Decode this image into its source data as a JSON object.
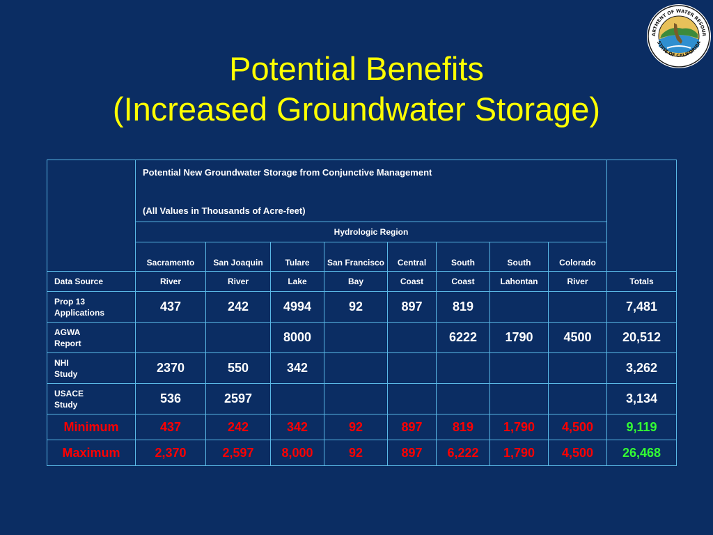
{
  "slide": {
    "title_line1": "Potential Benefits",
    "title_line2": "(Increased Groundwater Storage)"
  },
  "seal": {
    "text_top": "DEPARTMENT OF WATER RESOURCES",
    "text_bottom": "STATE OF CALIFORNIA"
  },
  "table": {
    "heading": "Potential New Groundwater Storage from Conjunctive Management",
    "units": "(All Values in Thousands of Acre-feet)",
    "region_header": "Hydrologic Region",
    "regions_top": [
      "Sacramento",
      "San Joaquin",
      "Tulare",
      "San Francisco",
      "Central",
      "South",
      "South",
      "Colorado"
    ],
    "source_label": "Data Source",
    "regions_bottom": [
      "River",
      "River",
      "Lake",
      "Bay",
      "Coast",
      "Coast",
      "Lahontan",
      "River"
    ],
    "totals_label": "Totals",
    "rows": [
      {
        "label_line1": "Prop 13",
        "label_line2": "Applications",
        "values": [
          "437",
          "242",
          "4994",
          "92",
          "897",
          "819",
          "",
          ""
        ],
        "total": "7,481"
      },
      {
        "label_line1": "AGWA",
        "label_line2": "Report",
        "values": [
          "",
          "",
          "8000",
          "",
          "",
          "6222",
          "1790",
          "4500"
        ],
        "total": "20,512"
      },
      {
        "label_line1": "NHI",
        "label_line2": "Study",
        "values": [
          "2370",
          "550",
          "342",
          "",
          "",
          "",
          "",
          ""
        ],
        "total": "3,262"
      },
      {
        "label_line1": "USACE",
        "label_line2": "Study",
        "values": [
          "536",
          "2597",
          "",
          "",
          "",
          "",
          "",
          ""
        ],
        "total": "3,134"
      }
    ],
    "minimum": {
      "label": "Minimum",
      "values": [
        "437",
        "242",
        "342",
        "92",
        "897",
        "819",
        "1,790",
        "4,500"
      ],
      "total": "9,119"
    },
    "maximum": {
      "label": "Maximum",
      "values": [
        "2,370",
        "2,597",
        "8,000",
        "92",
        "897",
        "6,222",
        "1,790",
        "4,500"
      ],
      "total": "26,468"
    }
  },
  "colors": {
    "background": "#0b2d63",
    "title": "#ffff00",
    "border": "#5ab8e6",
    "summary_values": "#ff0000",
    "summary_totals": "#33ff33"
  }
}
